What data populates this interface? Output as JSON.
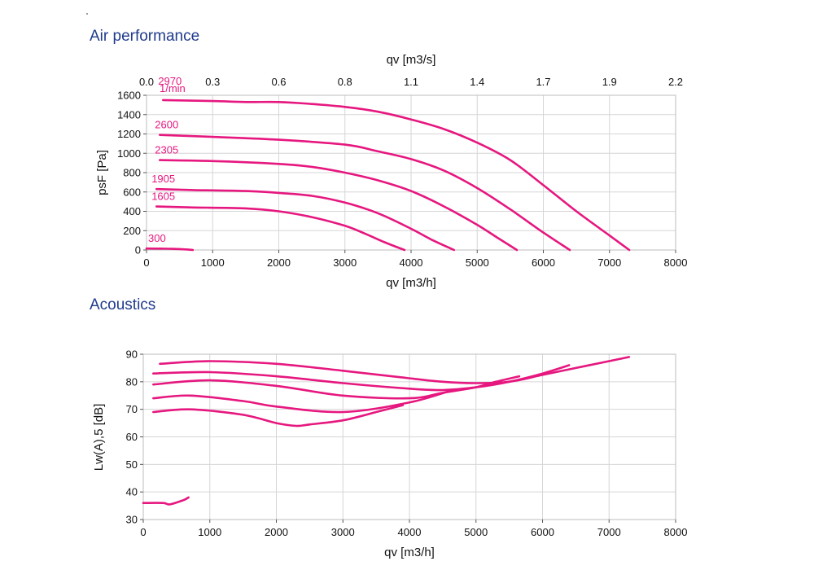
{
  "titles": {
    "air": "Air performance",
    "acoustics": "Acoustics"
  },
  "colors": {
    "curve": "#e6177f",
    "title": "#1f3b8c",
    "grid": "#d6d6d6"
  },
  "chart_data": [
    {
      "type": "line",
      "title": "Air performance",
      "xlabel": "qv [m3/h]",
      "ylabel": "psF [Pa]",
      "x2label": "qv [m3/s]",
      "xlim": [
        0,
        8000
      ],
      "ylim": [
        0,
        1600
      ],
      "xticks": [
        "0",
        "1000",
        "2000",
        "3000",
        "4000",
        "5000",
        "6000",
        "7000",
        "8000"
      ],
      "yticks": [
        "0",
        "200",
        "400",
        "600",
        "800",
        "1000",
        "1200",
        "1400",
        "1600"
      ],
      "x2ticks": [
        "0.0",
        "0.3",
        "0.6",
        "0.8",
        "1.1",
        "1.4",
        "1.7",
        "1.9",
        "2.2"
      ],
      "grid": true,
      "unit_label": "1/min",
      "series": [
        {
          "name": "2970",
          "x": [
            250,
            1000,
            1500,
            2000,
            2500,
            3000,
            3500,
            4000,
            4500,
            5000,
            5500,
            6000,
            6500,
            7000,
            7300
          ],
          "y": [
            1550,
            1540,
            1530,
            1530,
            1510,
            1480,
            1430,
            1350,
            1250,
            1110,
            930,
            670,
            400,
            150,
            0
          ]
        },
        {
          "name": "2600",
          "x": [
            200,
            1000,
            2000,
            3000,
            3500,
            4000,
            4500,
            5000,
            5500,
            6000,
            6400
          ],
          "y": [
            1190,
            1170,
            1140,
            1090,
            1020,
            940,
            820,
            640,
            420,
            180,
            0
          ]
        },
        {
          "name": "2305",
          "x": [
            200,
            1000,
            2000,
            2500,
            3000,
            3500,
            4000,
            4500,
            5000,
            5300,
            5600
          ],
          "y": [
            930,
            920,
            890,
            860,
            800,
            720,
            610,
            450,
            260,
            130,
            0
          ]
        },
        {
          "name": "1905",
          "x": [
            150,
            700,
            1500,
            2000,
            2500,
            3000,
            3500,
            4000,
            4300,
            4650
          ],
          "y": [
            630,
            620,
            610,
            590,
            560,
            490,
            380,
            220,
            110,
            0
          ]
        },
        {
          "name": "1605",
          "x": [
            150,
            700,
            1500,
            2000,
            2500,
            3000,
            3300,
            3600,
            3900
          ],
          "y": [
            450,
            440,
            430,
            400,
            340,
            250,
            170,
            80,
            0
          ]
        },
        {
          "name": "300",
          "x": [
            0,
            200,
            400,
            600,
            700
          ],
          "y": [
            15,
            14,
            12,
            6,
            0
          ]
        }
      ]
    },
    {
      "type": "line",
      "title": "Acoustics",
      "xlabel": "qv [m3/h]",
      "ylabel": "Lw(A),5 [dB]",
      "xlim": [
        0,
        8000
      ],
      "ylim": [
        30,
        90
      ],
      "xticks": [
        "0",
        "1000",
        "2000",
        "3000",
        "4000",
        "5000",
        "6000",
        "7000",
        "8000"
      ],
      "yticks": [
        "30",
        "40",
        "50",
        "60",
        "70",
        "80",
        "90"
      ],
      "grid": true,
      "series": [
        {
          "x": [
            250,
            1000,
            2000,
            3000,
            3800,
            4500,
            5000,
            5500,
            6000,
            6500,
            7000,
            7300
          ],
          "y": [
            86.5,
            87.5,
            86.5,
            84,
            81.8,
            80,
            79.5,
            80,
            82.5,
            85,
            87.5,
            89
          ]
        },
        {
          "x": [
            150,
            1000,
            2000,
            3000,
            4000,
            4500,
            5000,
            5500,
            6000,
            6400
          ],
          "y": [
            83,
            83.5,
            82,
            79.5,
            77.5,
            77,
            78,
            80,
            83,
            86
          ]
        },
        {
          "x": [
            150,
            1000,
            2000,
            3000,
            4000,
            4500,
            5000,
            5300,
            5650
          ],
          "y": [
            79,
            80.5,
            78.5,
            75,
            74,
            76,
            78,
            80,
            82
          ]
        },
        {
          "x": [
            150,
            700,
            1500,
            2000,
            3000,
            4000,
            4650
          ],
          "y": [
            74,
            75,
            73,
            71,
            69,
            72.5,
            77
          ]
        },
        {
          "x": [
            150,
            700,
            1500,
            2000,
            2300,
            2500,
            3000,
            3500,
            3900
          ],
          "y": [
            69,
            70,
            68,
            65,
            64,
            64.5,
            66,
            69,
            71.5
          ]
        },
        {
          "x": [
            0,
            300,
            400,
            600,
            680
          ],
          "y": [
            36,
            36,
            35.5,
            37,
            38
          ]
        }
      ]
    }
  ]
}
